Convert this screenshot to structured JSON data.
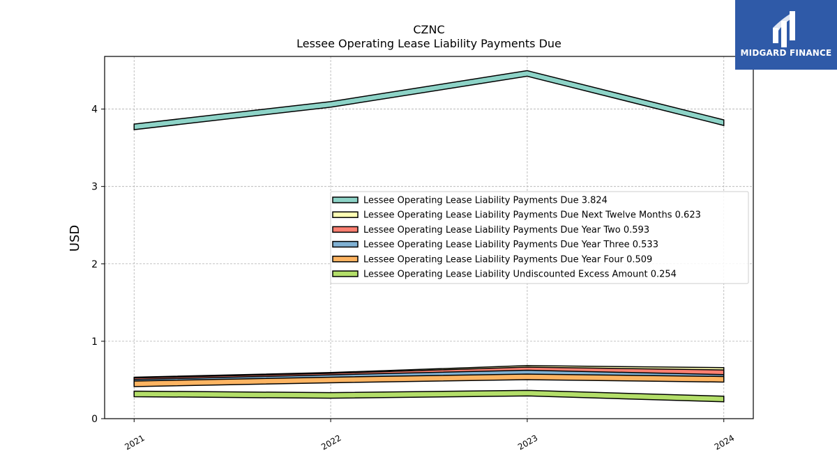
{
  "brand": {
    "name": "MIDGARD FINANCE",
    "logo_icon": "midgard-logo-icon",
    "background": "#2f5aa8"
  },
  "chart_data": {
    "type": "line",
    "title": "CZNC",
    "subtitle": "Lessee Operating Lease Liability Payments Due",
    "xlabel": "",
    "ylabel": "USD",
    "x": [
      "2021",
      "2022",
      "2023",
      "2024"
    ],
    "xlim": [
      2020.85,
      2024.15
    ],
    "ylim": [
      0,
      4.68
    ],
    "yticks": [
      0,
      1,
      2,
      3,
      4
    ],
    "grid": true,
    "legend_position": "center-right",
    "series": [
      {
        "name": "Lessee Operating Lease Liability Payments Due",
        "latest": "3.824",
        "color": "#8dd3c7",
        "values": [
          3.77,
          4.06,
          4.46,
          3.824
        ]
      },
      {
        "name": "Lessee Operating Lease Liability Payments Due Next Twelve Months",
        "latest": "0.623",
        "color": "#ffffb3",
        "values": [
          0.5,
          0.56,
          0.65,
          0.623
        ]
      },
      {
        "name": "Lessee Operating Lease Liability Payments Due Year Two",
        "latest": "0.593",
        "color": "#fb8072",
        "values": [
          0.49,
          0.55,
          0.63,
          0.593
        ]
      },
      {
        "name": "Lessee Operating Lease Liability Payments Due Year Three",
        "latest": "0.533",
        "color": "#80b1d3",
        "values": [
          0.47,
          0.53,
          0.59,
          0.533
        ]
      },
      {
        "name": "Lessee Operating Lease Liability Payments Due Year Four",
        "latest": "0.509",
        "color": "#fdb462",
        "values": [
          0.45,
          0.5,
          0.54,
          0.509
        ]
      },
      {
        "name": "Lessee Operating Lease Liability Undiscounted Excess Amount",
        "latest": "0.254",
        "color": "#b3de69",
        "values": [
          0.32,
          0.3,
          0.33,
          0.254
        ]
      }
    ]
  }
}
